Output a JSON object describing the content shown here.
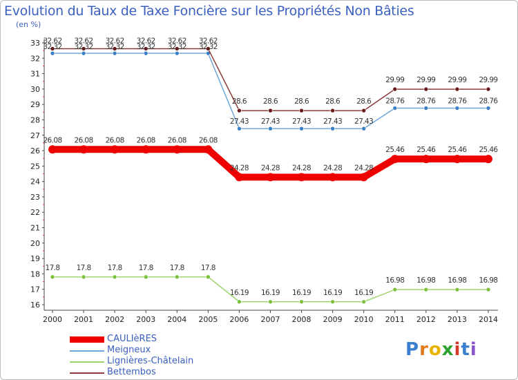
{
  "title": "Evolution du Taux de Taxe Foncière sur les Propriétés Non Bâties",
  "unit": "(en %)",
  "logo": {
    "text": "Proxiti",
    "colors": [
      "#3b7fd0",
      "#e07a1f",
      "#e9b400",
      "#2da02d",
      "#d43a2a",
      "#3b7fd0",
      "#8a55c8"
    ]
  },
  "chart_data": {
    "type": "line",
    "title": "Evolution du Taux de Taxe Foncière sur les Propriétés Non Bâties",
    "ylabel": "(en %)",
    "xlabel": "",
    "categories": [
      "2000",
      "2001",
      "2002",
      "2003",
      "2004",
      "2005",
      "2006",
      "2007",
      "2008",
      "2009",
      "2010",
      "2011",
      "2012",
      "2013",
      "2014"
    ],
    "ylim": [
      16,
      33
    ],
    "yticks": [
      16,
      17,
      18,
      19,
      20,
      21,
      22,
      23,
      24,
      25,
      26,
      27,
      28,
      29,
      30,
      31,
      32,
      33
    ],
    "series": [
      {
        "name": "CAULIèRES",
        "color": "#ee0000",
        "point_color": "#ee0000",
        "width": "thick",
        "values": [
          26.08,
          26.08,
          26.08,
          26.08,
          26.08,
          26.08,
          24.28,
          24.28,
          24.28,
          24.28,
          24.28,
          25.46,
          25.46,
          25.46,
          25.46
        ],
        "labels": [
          "26.08",
          "26.08",
          "26.08",
          "26.08",
          "26.08",
          "26.08",
          "24.28",
          "24.28",
          "24.28",
          "24.28",
          "24.28",
          "25.46",
          "25.46",
          "25.46",
          "25.46"
        ]
      },
      {
        "name": "Meigneux",
        "color": "#6ea6d8",
        "point_color": "#3b7fc4",
        "width": "thin",
        "values": [
          32.32,
          32.32,
          32.32,
          32.32,
          32.32,
          32.32,
          27.43,
          27.43,
          27.43,
          27.43,
          27.43,
          28.76,
          28.76,
          28.76,
          28.76
        ],
        "labels": [
          "32.32",
          "32.32",
          "32.32",
          "32.32",
          "32.32",
          "32.32",
          "27.43",
          "27.43",
          "27.43",
          "27.43",
          "27.43",
          "28.76",
          "28.76",
          "28.76",
          "28.76"
        ]
      },
      {
        "name": "Lignières-Châtelain",
        "color": "#9fd46a",
        "point_color": "#7cc03e",
        "width": "thin",
        "values": [
          17.8,
          17.8,
          17.8,
          17.8,
          17.8,
          17.8,
          16.19,
          16.19,
          16.19,
          16.19,
          16.19,
          16.98,
          16.98,
          16.98,
          16.98
        ],
        "labels": [
          "17.8",
          "17.8",
          "17.8",
          "17.8",
          "17.8",
          "17.8",
          "16.19",
          "16.19",
          "16.19",
          "16.19",
          "16.19",
          "16.98",
          "16.98",
          "16.98",
          "16.98"
        ]
      },
      {
        "name": "Bettembos",
        "color": "#8b3a3a",
        "point_color": "#6b1a1a",
        "width": "thin",
        "values": [
          32.62,
          32.62,
          32.62,
          32.62,
          32.62,
          32.62,
          28.6,
          28.6,
          28.6,
          28.6,
          28.6,
          29.99,
          29.99,
          29.99,
          29.99
        ],
        "labels": [
          "32.62",
          "32.62",
          "32.62",
          "32.62",
          "32.62",
          "32.62",
          "28.6",
          "28.6",
          "28.6",
          "28.6",
          "28.6",
          "29.99",
          "29.99",
          "29.99",
          "29.99"
        ]
      }
    ]
  }
}
